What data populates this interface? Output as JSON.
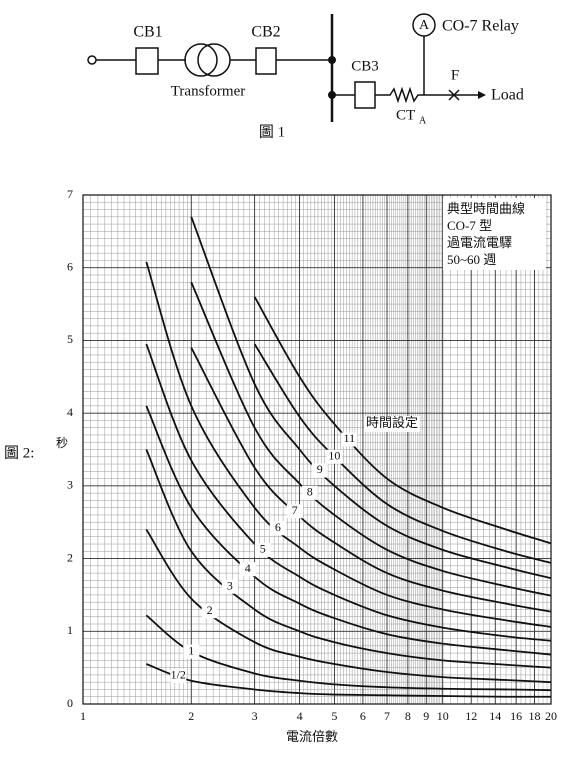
{
  "figure1": {
    "cb1": "CB1",
    "cb2": "CB2",
    "transformer": "Transformer",
    "cb3": "CB3",
    "ammeter": "A",
    "relay": "CO-7 Relay",
    "fuse": "F",
    "load": "Load",
    "ct": "CT",
    "ct_sub": "A",
    "caption": "圖 1"
  },
  "figure2_label": "圖 2:",
  "chart_data": {
    "type": "line",
    "xscale": "log",
    "ylabel": "秒",
    "xlabel": "電流倍數",
    "annotations": [
      "典型時間曲線",
      "CO-7 型",
      "過電流電驛",
      "50~60 週"
    ],
    "curve_label_heading": "時間設定",
    "x": [
      1.5,
      2,
      3,
      4,
      5,
      7,
      10,
      15,
      20
    ],
    "series": [
      {
        "name": "11",
        "color": "#111111",
        "values": [
          null,
          null,
          5.6,
          4.5,
          3.85,
          3.1,
          2.7,
          2.4,
          2.21
        ]
      },
      {
        "name": "10",
        "color": "#111111",
        "values": [
          null,
          null,
          4.95,
          3.95,
          3.4,
          2.75,
          2.38,
          2.1,
          1.94
        ]
      },
      {
        "name": "9",
        "color": "#111111",
        "values": [
          null,
          6.7,
          4.4,
          3.5,
          3.0,
          2.45,
          2.12,
          1.88,
          1.73
        ]
      },
      {
        "name": "8",
        "color": "#111111",
        "values": [
          null,
          5.8,
          3.8,
          3.03,
          2.6,
          2.12,
          1.83,
          1.62,
          1.49
        ]
      },
      {
        "name": "7",
        "color": "#111111",
        "values": [
          null,
          4.9,
          3.25,
          2.58,
          2.22,
          1.8,
          1.56,
          1.38,
          1.27
        ]
      },
      {
        "name": "6",
        "color": "#111111",
        "values": [
          6.08,
          4.1,
          2.7,
          2.15,
          1.85,
          1.5,
          1.3,
          1.15,
          1.06
        ]
      },
      {
        "name": "5",
        "color": "#111111",
        "values": [
          4.95,
          3.35,
          2.2,
          1.75,
          1.5,
          1.22,
          1.05,
          0.93,
          0.87
        ]
      },
      {
        "name": "4",
        "color": "#111111",
        "values": [
          4.1,
          2.7,
          1.75,
          1.38,
          1.18,
          0.96,
          0.83,
          0.74,
          0.68
        ]
      },
      {
        "name": "3",
        "color": "#111111",
        "values": [
          3.5,
          2.1,
          1.3,
          1.0,
          0.85,
          0.7,
          0.6,
          0.54,
          0.5
        ]
      },
      {
        "name": "2",
        "color": "#111111",
        "values": [
          2.4,
          1.45,
          0.85,
          0.65,
          0.55,
          0.44,
          0.37,
          0.33,
          0.3
        ]
      },
      {
        "name": "1",
        "color": "#111111",
        "values": [
          1.22,
          0.72,
          0.42,
          0.32,
          0.27,
          0.23,
          0.21,
          0.2,
          0.19
        ]
      },
      {
        "name": "1/2",
        "color": "#111111",
        "values": [
          0.55,
          0.32,
          0.2,
          0.15,
          0.13,
          0.12,
          0.11,
          0.1,
          0.1
        ]
      }
    ],
    "xlim": [
      1,
      20
    ],
    "ylim": [
      0,
      7
    ],
    "xticks": [
      1,
      2,
      3,
      4,
      5,
      6,
      7,
      8,
      9,
      10,
      12,
      14,
      16,
      18,
      20
    ],
    "yticks": [
      0,
      1,
      2,
      3,
      4,
      5,
      6,
      7
    ],
    "grid": true
  }
}
